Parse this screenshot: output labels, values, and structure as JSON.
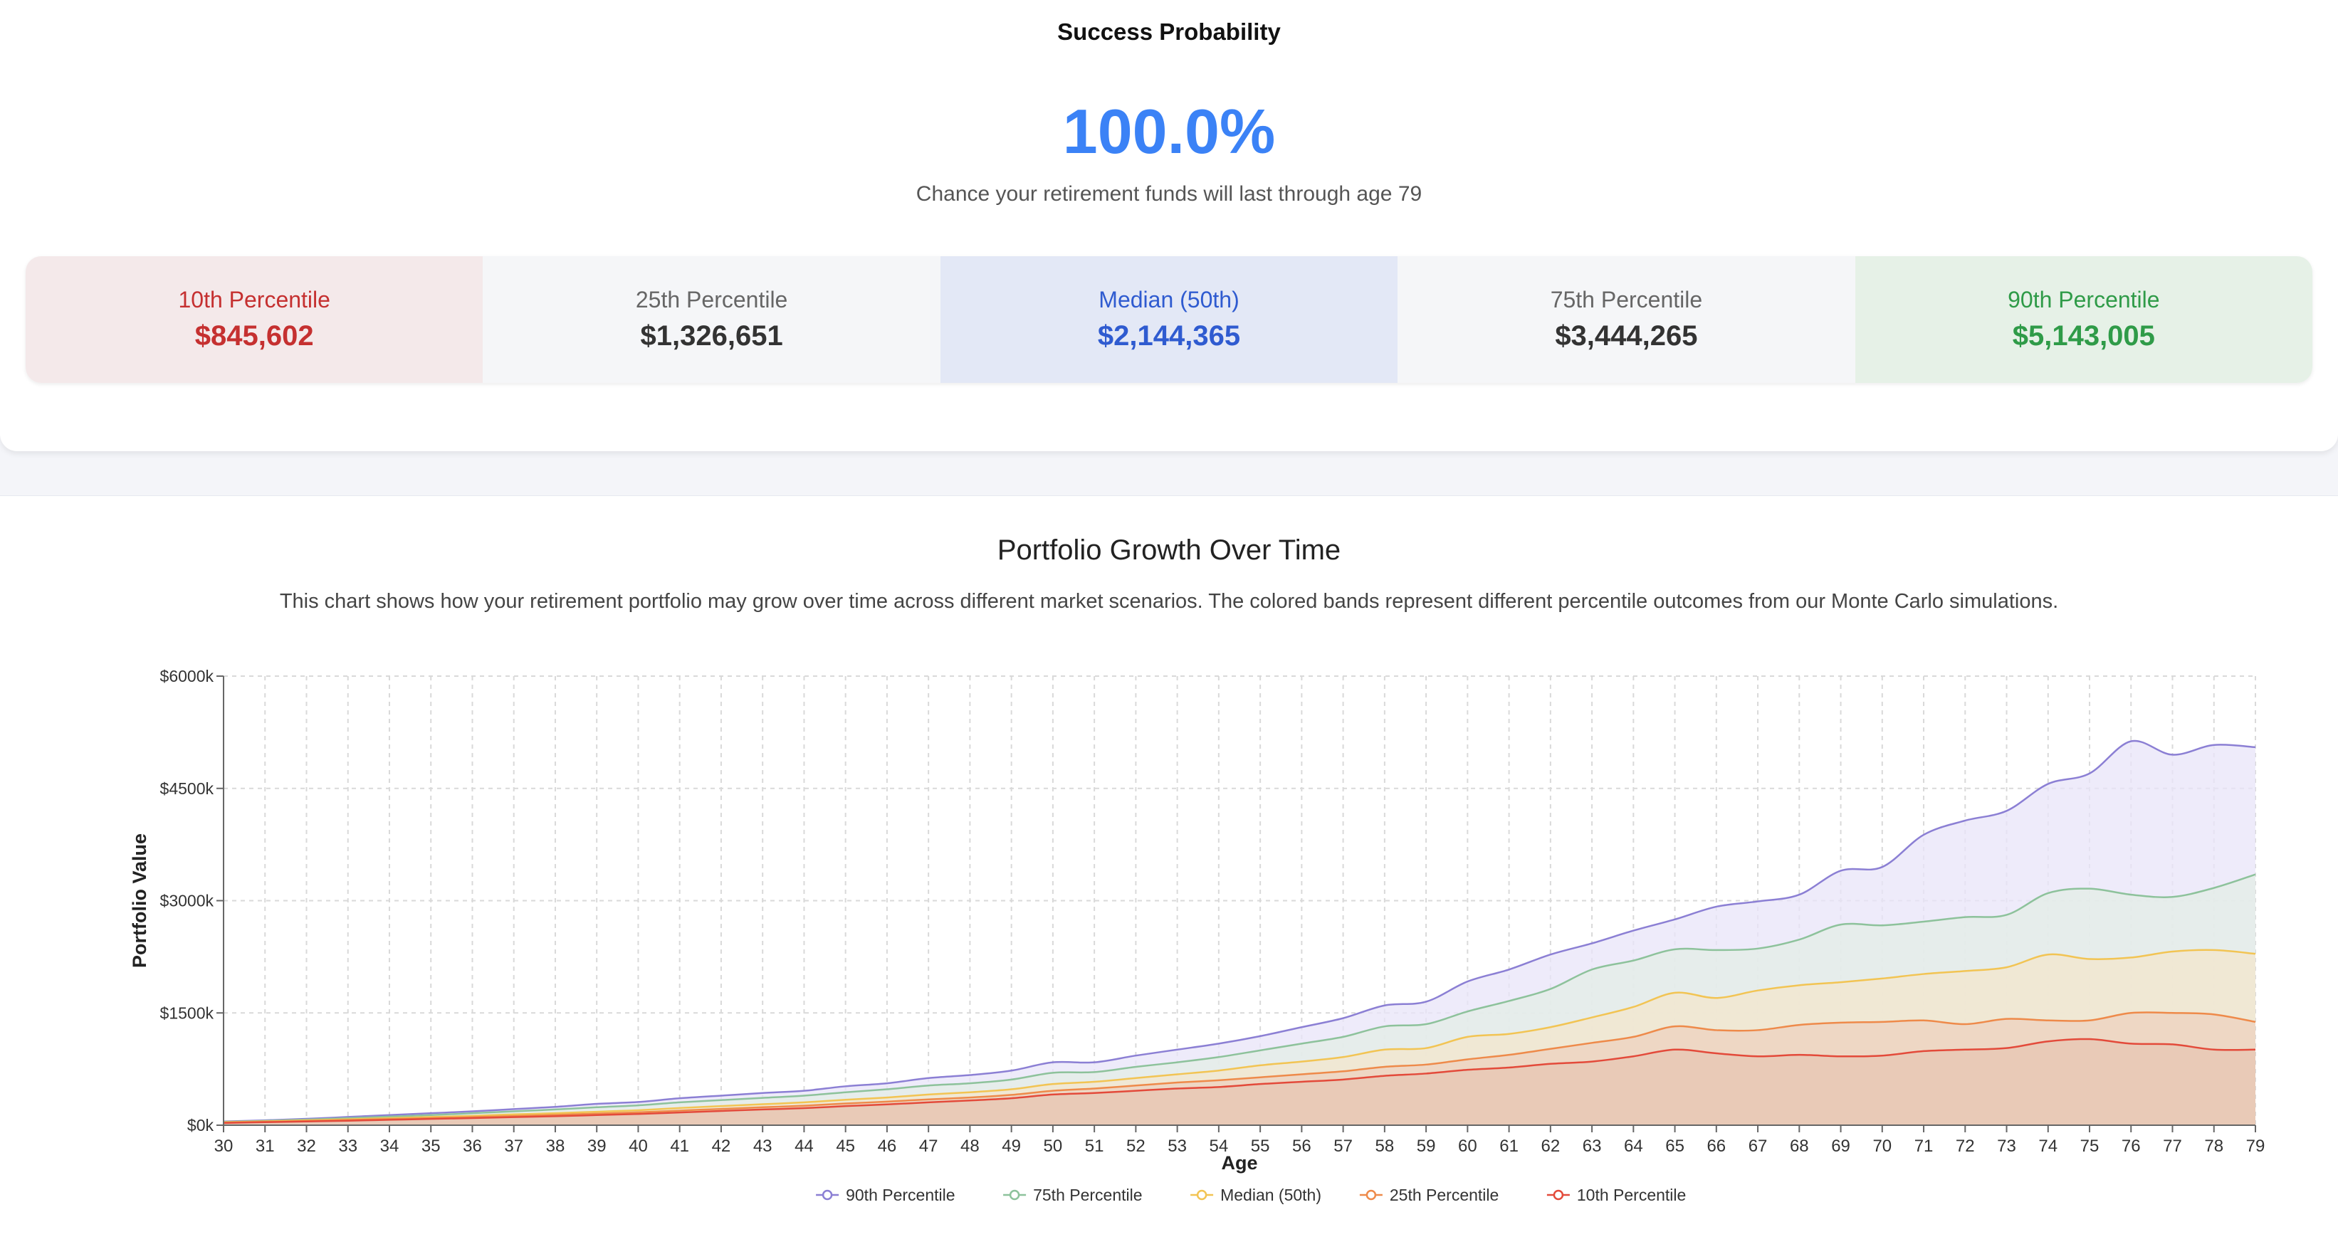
{
  "success": {
    "title": "Success Probability",
    "value": "100.0%",
    "note": "Chance your retirement funds will last through age 79"
  },
  "percentiles": [
    {
      "label": "10th Percentile",
      "value": "$845,602",
      "bg": "#f4e9ea",
      "label_color": "#c53030",
      "value_color": "#c53030"
    },
    {
      "label": "25th Percentile",
      "value": "$1,326,651",
      "bg": "#f5f6f8",
      "label_color": "#666666",
      "value_color": "#333333"
    },
    {
      "label": "Median (50th)",
      "value": "$2,144,365",
      "bg": "#e3e8f6",
      "label_color": "#2f5bd0",
      "value_color": "#2f5bd0"
    },
    {
      "label": "75th Percentile",
      "value": "$3,444,265",
      "bg": "#f5f6f8",
      "label_color": "#666666",
      "value_color": "#333333"
    },
    {
      "label": "90th Percentile",
      "value": "$5,143,005",
      "bg": "#e6f1e7",
      "label_color": "#2f9b48",
      "value_color": "#2f9b48"
    }
  ],
  "chart": {
    "title": "Portfolio Growth Over Time",
    "description": "This chart shows how your retirement portfolio may grow over time across different market scenarios. The colored bands represent different percentile outcomes from our Monte Carlo simulations."
  },
  "chart_data": {
    "type": "area",
    "xlabel": "Age",
    "ylabel": "Portfolio Value",
    "xlim": [
      30,
      79
    ],
    "ylim": [
      0,
      6000
    ],
    "yunit": "k",
    "yticks": [
      0,
      1500,
      3000,
      4500,
      6000
    ],
    "y_tick_labels": [
      "$0k",
      "$1500k",
      "$3000k",
      "$4500k",
      "$6000k"
    ],
    "grid": true,
    "legend_position": "bottom",
    "x": [
      30,
      31,
      32,
      33,
      34,
      35,
      36,
      37,
      38,
      39,
      40,
      41,
      42,
      43,
      44,
      45,
      46,
      47,
      48,
      49,
      50,
      51,
      52,
      53,
      54,
      55,
      56,
      57,
      58,
      59,
      60,
      61,
      62,
      63,
      64,
      65,
      66,
      67,
      68,
      69,
      70,
      71,
      72,
      73,
      74,
      75,
      76,
      77,
      78,
      79
    ],
    "series": [
      {
        "name": "90th Percentile",
        "color": "#8b7fd4",
        "fill": "#e8e4f8",
        "values": [
          50,
          65,
          85,
          110,
          135,
          160,
          185,
          215,
          245,
          285,
          310,
          360,
          395,
          430,
          460,
          520,
          560,
          630,
          670,
          730,
          840,
          840,
          930,
          1010,
          1090,
          1190,
          1310,
          1430,
          1600,
          1650,
          1920,
          2080,
          2280,
          2430,
          2600,
          2750,
          2920,
          2990,
          3080,
          3400,
          3450,
          3880,
          4070,
          4200,
          4560,
          4700,
          5130,
          4950,
          5080,
          5050
        ]
      },
      {
        "name": "75th Percentile",
        "color": "#8dc29b",
        "fill": "#e3ede6",
        "values": [
          45,
          58,
          75,
          95,
          115,
          135,
          160,
          185,
          210,
          240,
          265,
          305,
          335,
          365,
          395,
          440,
          480,
          530,
          560,
          610,
          700,
          710,
          780,
          840,
          910,
          1000,
          1090,
          1180,
          1320,
          1350,
          1520,
          1660,
          1820,
          2080,
          2200,
          2350,
          2340,
          2360,
          2480,
          2680,
          2670,
          2720,
          2780,
          2810,
          3100,
          3160,
          3080,
          3050,
          3170,
          3350
        ]
      },
      {
        "name": "Median (50th)",
        "color": "#f2c453",
        "fill": "#f3e6cc",
        "values": [
          40,
          52,
          65,
          80,
          95,
          110,
          125,
          145,
          160,
          180,
          200,
          230,
          255,
          280,
          305,
          340,
          370,
          410,
          440,
          480,
          550,
          580,
          630,
          680,
          730,
          800,
          850,
          910,
          1010,
          1030,
          1180,
          1220,
          1310,
          1440,
          1580,
          1770,
          1700,
          1800,
          1870,
          1910,
          1960,
          2020,
          2060,
          2110,
          2280,
          2220,
          2240,
          2320,
          2340,
          2290
        ]
      },
      {
        "name": "25th Percentile",
        "color": "#ee8a4a",
        "fill": "#edd2bf",
        "values": [
          35,
          45,
          57,
          70,
          82,
          95,
          108,
          123,
          138,
          155,
          172,
          195,
          218,
          240,
          260,
          290,
          315,
          345,
          370,
          405,
          460,
          490,
          530,
          570,
          600,
          640,
          680,
          720,
          780,
          810,
          880,
          940,
          1020,
          1100,
          1180,
          1320,
          1270,
          1270,
          1340,
          1370,
          1380,
          1400,
          1350,
          1420,
          1400,
          1400,
          1500,
          1500,
          1480,
          1380
        ]
      },
      {
        "name": "10th Percentile",
        "color": "#e34a3a",
        "fill": "#e7c6b3",
        "values": [
          30,
          40,
          50,
          60,
          72,
          84,
          95,
          108,
          120,
          135,
          150,
          170,
          190,
          210,
          228,
          255,
          278,
          305,
          330,
          360,
          410,
          430,
          460,
          490,
          510,
          550,
          580,
          610,
          660,
          690,
          740,
          770,
          820,
          850,
          920,
          1010,
          960,
          920,
          940,
          920,
          930,
          990,
          1010,
          1030,
          1120,
          1150,
          1090,
          1080,
          1010,
          1010
        ]
      }
    ]
  }
}
